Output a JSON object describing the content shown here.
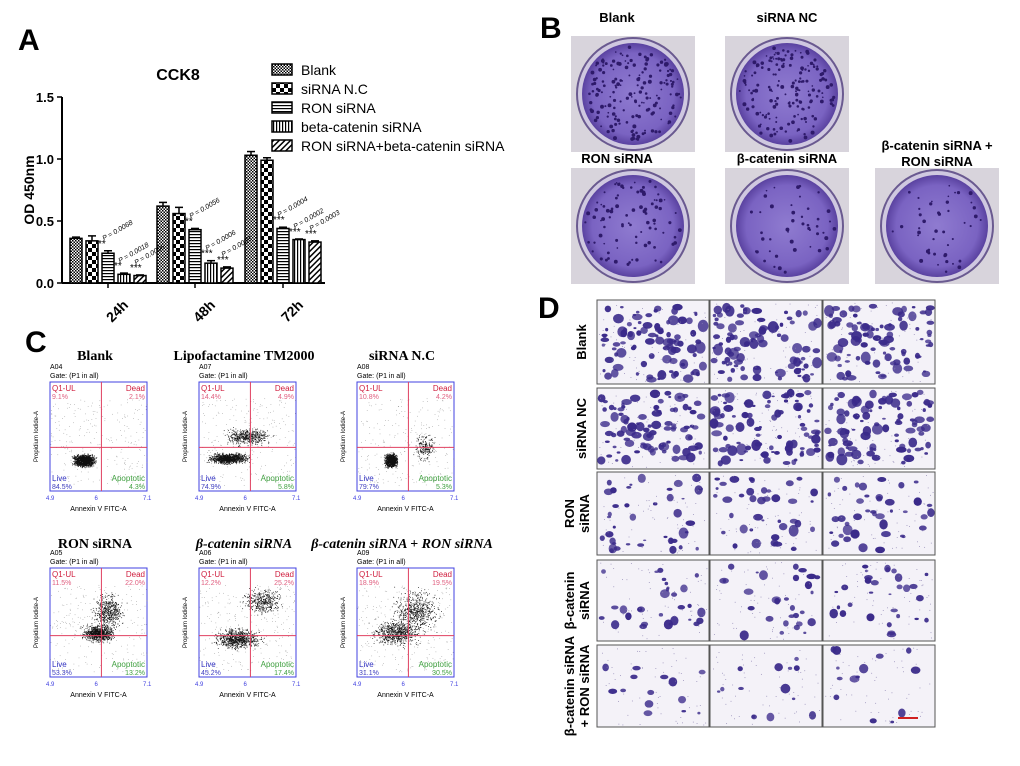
{
  "panel_labels": {
    "a": "A",
    "b": "B",
    "c": "C",
    "d": "D"
  },
  "chart_data": {
    "type": "bar",
    "title": "CCK8",
    "ylabel": "OD 450nm",
    "xlabel": "",
    "ylim": [
      0,
      1.5
    ],
    "yticks": [
      "0.0",
      "0.5",
      "1.0",
      "1.5"
    ],
    "categories": [
      "24h",
      "48h",
      "72h"
    ],
    "legend_position": "top-right",
    "series": [
      {
        "name": "Blank",
        "pattern": "checker-fine",
        "values": [
          0.36,
          0.62,
          1.03
        ],
        "errors": [
          0.01,
          0.03,
          0.03
        ]
      },
      {
        "name": "siRNA N.C",
        "pattern": "checker-large",
        "values": [
          0.34,
          0.56,
          0.99
        ],
        "errors": [
          0.04,
          0.05,
          0.02
        ]
      },
      {
        "name": "RON siRNA",
        "pattern": "horizontal-stripes",
        "values": [
          0.24,
          0.43,
          0.44
        ],
        "errors": [
          0.02,
          0.01,
          0.01
        ]
      },
      {
        "name": "beta-catenin siRNA",
        "pattern": "vertical-stripes",
        "values": [
          0.07,
          0.16,
          0.35
        ],
        "errors": [
          0.01,
          0.02,
          0.005
        ]
      },
      {
        "name": "RON siRNA+beta-catenin siRNA",
        "pattern": "diagonal-stripes",
        "values": [
          0.06,
          0.12,
          0.33
        ],
        "errors": [
          0.005,
          0.01,
          0.01
        ]
      }
    ],
    "annotations": [
      {
        "category": "24h",
        "series": 2,
        "text": "P = 0.0068",
        "stars": "**"
      },
      {
        "category": "24h",
        "series": 3,
        "text": "P = 0.0018",
        "stars": "**"
      },
      {
        "category": "24h",
        "series": 4,
        "text": "P = 0.0005",
        "stars": "***"
      },
      {
        "category": "48h",
        "series": 2,
        "text": "P = 0.0056",
        "stars": "**"
      },
      {
        "category": "48h",
        "series": 3,
        "text": "P = 0.0006",
        "stars": "***"
      },
      {
        "category": "48h",
        "series": 4,
        "text": "P = 0.0003",
        "stars": "***"
      },
      {
        "category": "72h",
        "series": 2,
        "text": "P = 0.0004",
        "stars": "***"
      },
      {
        "category": "72h",
        "series": 3,
        "text": "P = 0.0002",
        "stars": "***"
      },
      {
        "category": "72h",
        "series": 4,
        "text": "P = 0.0003",
        "stars": "***"
      }
    ]
  },
  "panel_b": {
    "dish_color": "#6a4fb0",
    "dishes": [
      {
        "label": "Blank",
        "density": "high"
      },
      {
        "label": "siRNA NC",
        "density": "high"
      },
      {
        "label": "RON siRNA",
        "density": "medium"
      },
      {
        "label": "β-catenin siRNA",
        "density": "low"
      },
      {
        "label_line1": "β-catenin siRNA +",
        "label_line2": "RON siRNA",
        "density": "low"
      }
    ]
  },
  "panel_c": {
    "x_axis_label": "Annexin V FITC-A",
    "y_axis_label": "Propidium Iodide-A",
    "gate": "Gate: (P1 in all)",
    "quadrant_names": {
      "ul": "Q1-UL",
      "ur": "Dead",
      "ll": "Live",
      "lr": "Apoptotic"
    },
    "x_ticks": [
      "4.9",
      "6",
      "7.1"
    ],
    "plots": [
      {
        "title": "Blank",
        "well": "A04",
        "ul": "9.1%",
        "ur": "2.1%",
        "ll": "84.5%",
        "lr": "4.3%"
      },
      {
        "title": "Lipofactamine TM2000",
        "well": "A07",
        "ul": "14.4%",
        "ur": "4.9%",
        "ll": "74.9%",
        "lr": "5.8%"
      },
      {
        "title": "siRNA N.C",
        "well": "A08",
        "ul": "10.8%",
        "ur": "4.2%",
        "ll": "79.7%",
        "lr": "5.3%"
      },
      {
        "title": "RON siRNA",
        "well": "A05",
        "ul": "11.5%",
        "ur": "22.0%",
        "ll": "53.3%",
        "lr": "13.2%"
      },
      {
        "title": "β-catenin siRNA",
        "well": "A06",
        "ul": "12.2%",
        "ur": "25.2%",
        "ll": "45.2%",
        "lr": "17.4%"
      },
      {
        "title": "β-catenin siRNA + RON siRNA",
        "well": "A09",
        "ul": "18.9%",
        "ur": "19.5%",
        "ll": "31.1%",
        "lr": "30.5%"
      }
    ]
  },
  "panel_d": {
    "cell_color": "#3a2a8a",
    "rows": [
      {
        "line1": "Blank",
        "line2": "",
        "density": "high"
      },
      {
        "line1": "siRNA NC",
        "line2": "",
        "density": "high"
      },
      {
        "line1": "RON",
        "line2": "siRNA",
        "density": "medium"
      },
      {
        "line1": "β-catenin",
        "line2": "siRNA",
        "density": "low"
      },
      {
        "line1": "β-catenin siRNA",
        "line2": "+ RON siRNA",
        "density": "very-low"
      }
    ]
  }
}
